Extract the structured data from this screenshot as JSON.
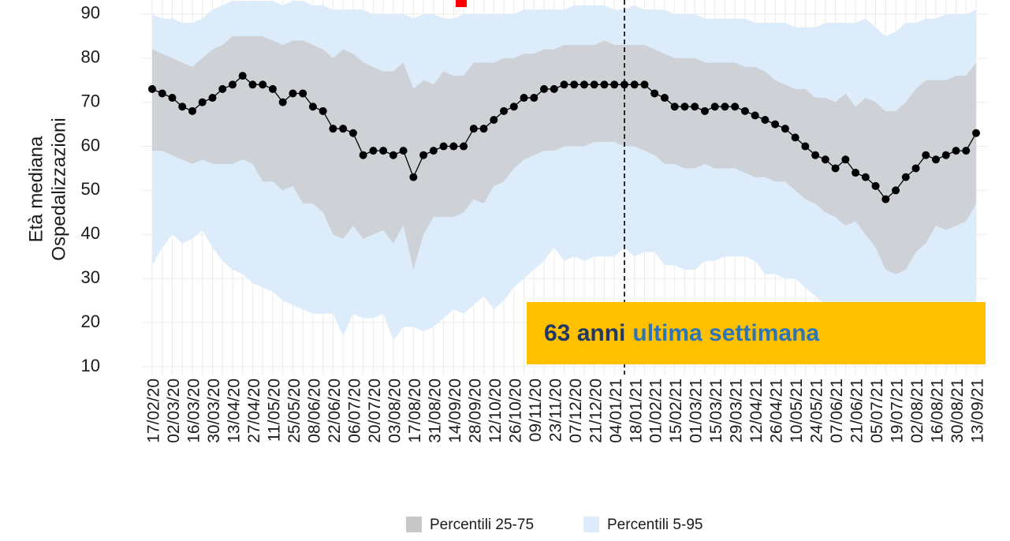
{
  "chart_data": {
    "type": "line",
    "ylabel": [
      "Età mediana",
      "Ospedalizzazioni"
    ],
    "annotation": [
      "63 anni",
      "ultima settimana"
    ],
    "categories": [
      "17/02/20",
      null,
      "02/03/20",
      null,
      "16/03/20",
      null,
      "30/03/20",
      null,
      "13/04/20",
      null,
      "27/04/20",
      null,
      "11/05/20",
      null,
      "25/05/20",
      null,
      "08/06/20",
      null,
      "22/06/20",
      null,
      "06/07/20",
      null,
      "20/07/20",
      null,
      "03/08/20",
      null,
      "17/08/20",
      null,
      "31/08/20",
      null,
      "14/09/20",
      null,
      "28/09/20",
      null,
      "12/10/20",
      null,
      "26/10/20",
      null,
      "09/11/20",
      null,
      "23/11/20",
      null,
      "07/12/20",
      null,
      "21/12/20",
      null,
      "04/01/21",
      null,
      "18/01/21",
      null,
      "01/02/21",
      null,
      "15/02/21",
      null,
      "01/03/21",
      null,
      "15/03/21",
      null,
      "29/03/21",
      null,
      "12/04/21",
      null,
      "26/04/21",
      null,
      "10/05/21",
      null,
      "24/05/21",
      null,
      "07/06/21",
      null,
      "21/06/21",
      null,
      "05/07/21",
      null,
      "19/07/21",
      null,
      "02/08/21",
      null,
      "16/08/21",
      null,
      "30/08/21",
      null,
      "13/09/21"
    ],
    "series": [
      {
        "color": "#000000",
        "values": [
          73,
          72,
          71,
          69,
          68,
          70,
          71,
          73,
          74,
          76,
          74,
          74,
          73,
          70,
          72,
          72,
          69,
          68,
          64,
          64,
          63,
          58,
          59,
          59,
          58,
          59,
          53,
          58,
          59,
          60,
          60,
          60,
          64,
          64,
          66,
          68,
          69,
          71,
          71,
          73,
          73,
          74,
          74,
          74,
          74,
          74,
          74,
          74,
          74,
          74,
          72,
          71,
          69,
          69,
          69,
          68,
          69,
          69,
          69,
          68,
          67,
          66,
          65,
          64,
          62,
          60,
          58,
          57,
          55,
          57,
          54,
          53,
          51,
          48,
          50,
          53,
          55,
          58,
          57,
          58,
          59,
          59,
          63
        ]
      }
    ],
    "bands": [
      {
        "name": "Percentili 5-95",
        "color": "#ddecfb",
        "lower": [
          33,
          37,
          40,
          38,
          39,
          41,
          37,
          34,
          32,
          31,
          29,
          28,
          27,
          25,
          24,
          23,
          22,
          22,
          22,
          17,
          22,
          21,
          21,
          22,
          16,
          19,
          19,
          18,
          19,
          21,
          23,
          22,
          24,
          26,
          23,
          25,
          28,
          30,
          32,
          34,
          37,
          34,
          35,
          34,
          35,
          35,
          35,
          37,
          35,
          36,
          36,
          33,
          33,
          32,
          32,
          34,
          34,
          35,
          35,
          35,
          34,
          31,
          31,
          30,
          30,
          28,
          26,
          24,
          23,
          22,
          22,
          22,
          22,
          22,
          22,
          22,
          22,
          22,
          22,
          22,
          22,
          22,
          22
        ],
        "upper": [
          90,
          89,
          89,
          88,
          88,
          89,
          91,
          92,
          93,
          93,
          93,
          93,
          93,
          92,
          93,
          93,
          92,
          92,
          91,
          91,
          91,
          91,
          90,
          90,
          90,
          90,
          89,
          90,
          90,
          89,
          89,
          90,
          90,
          90,
          90,
          90,
          90,
          91,
          91,
          91,
          91,
          91,
          92,
          92,
          92,
          92,
          91,
          91,
          92,
          91,
          91,
          91,
          90,
          90,
          90,
          89,
          89,
          89,
          89,
          89,
          88,
          88,
          88,
          88,
          87,
          87,
          87,
          88,
          88,
          88,
          88,
          89,
          87,
          85,
          86,
          88,
          88,
          89,
          89,
          90,
          90,
          90,
          91
        ]
      },
      {
        "name": "Percentili 25-75",
        "color": "#c8c8c8",
        "lower": [
          59,
          59,
          58,
          57,
          56,
          57,
          56,
          56,
          56,
          57,
          56,
          52,
          52,
          50,
          51,
          47,
          47,
          45,
          40,
          39,
          42,
          39,
          40,
          41,
          38,
          42,
          32,
          40,
          44,
          44,
          44,
          45,
          48,
          47,
          51,
          52,
          55,
          57,
          58,
          59,
          59,
          60,
          60,
          60,
          61,
          61,
          61,
          60,
          60,
          59,
          58,
          56,
          56,
          55,
          55,
          56,
          55,
          55,
          55,
          54,
          53,
          53,
          52,
          52,
          50,
          48,
          47,
          45,
          44,
          42,
          43,
          40,
          37,
          32,
          31,
          32,
          36,
          38,
          42,
          41,
          42,
          43,
          47
        ],
        "upper": [
          82,
          81,
          80,
          79,
          78,
          80,
          82,
          83,
          85,
          85,
          85,
          85,
          84,
          83,
          84,
          84,
          83,
          82,
          80,
          82,
          81,
          79,
          78,
          77,
          77,
          79,
          73,
          75,
          74,
          77,
          76,
          76,
          79,
          79,
          79,
          80,
          80,
          81,
          81,
          82,
          82,
          83,
          83,
          83,
          83,
          84,
          83,
          83,
          83,
          83,
          82,
          81,
          80,
          80,
          80,
          79,
          79,
          79,
          79,
          78,
          78,
          77,
          75,
          74,
          73,
          73,
          71,
          71,
          70,
          72,
          69,
          71,
          70,
          68,
          68,
          70,
          73,
          75,
          75,
          75,
          76,
          76,
          79
        ]
      }
    ],
    "ylim": [
      8.2,
      93.2
    ],
    "yticks": [
      10,
      20,
      30,
      40,
      50,
      60,
      70,
      80,
      90
    ],
    "grid": true
  }
}
